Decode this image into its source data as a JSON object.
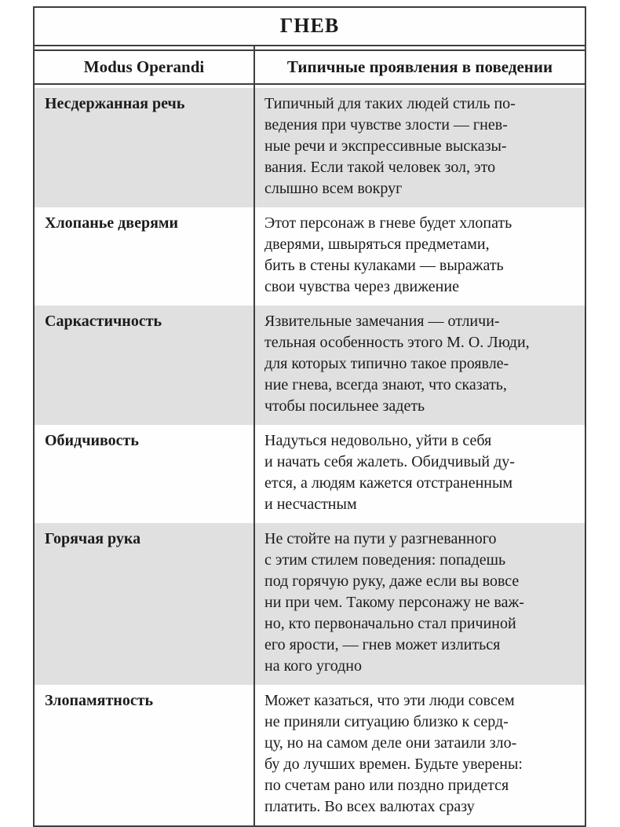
{
  "table": {
    "title": "ГНЕВ",
    "columns": [
      "Modus Operandi",
      "Типичные проявления в поведении"
    ],
    "rows": [
      {
        "term": "Несдержанная речь",
        "description": "Типичный для таких людей стиль по-\nведения при чувстве злости — гнев-\nные речи и экспрессивные высказы-\nвания. Если такой человек зол, это\nслышно всем вокруг"
      },
      {
        "term": "Хлопанье дверями",
        "description": "Этот персонаж в гневе будет хлопать\nдверями, швыряться предметами,\nбить в стены кулаками — выражать\nсвои чувства через движение"
      },
      {
        "term": "Саркастичность",
        "description": "Язвительные замечания — отличи-\nтельная особенность этого М. О. Люди,\nдля которых типично такое проявле-\nние гнева, всегда знают, что сказать,\nчтобы посильнее задеть"
      },
      {
        "term": "Обидчивость",
        "description": "Надуться недовольно, уйти в себя\nи начать себя жалеть. Обидчивый ду-\nется, а людям кажется отстраненным\nи несчастным"
      },
      {
        "term": "Горячая рука",
        "description": "Не стойте на пути у разгневанного\nс этим стилем поведения: попадешь\nпод горячую руку, даже если вы вовсе\nни при чем. Такому персонажу не важ-\nно, кто первоначально стал причиной\nего ярости, — гнев может излиться\nна кого угодно"
      },
      {
        "term": "Злопамятность",
        "description": "Может казаться, что эти люди совсем\nне приняли ситуацию близко к серд-\nцу, но на самом деле они затаили зло-\nбу до лучших времен. Будьте уверены:\nпо счетам рано или поздно придется\nплатить. Во всех валютах сразу"
      }
    ],
    "colors": {
      "shaded_row": "#e0e0e0",
      "border": "#3e3e3e",
      "background": "#ffffff",
      "text": "#1b1b1b"
    }
  }
}
